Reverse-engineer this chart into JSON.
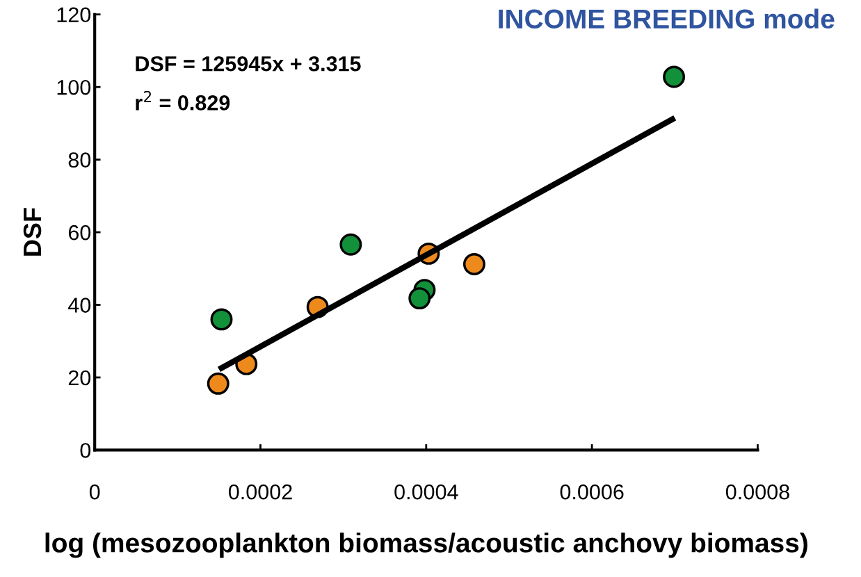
{
  "chart_data": {
    "type": "scatter",
    "title": "INCOME BREEDING mode",
    "xlabel": "log (mesozooplankton biomass/acoustic anchovy biomass)",
    "ylabel": "DSF",
    "annotations": [
      "DSF = 125945x + 3.315",
      "r$^{2}$ = 0.829"
    ],
    "xlim": [
      0,
      0.0008
    ],
    "ylim": [
      0,
      120
    ],
    "xticks": [
      0,
      0.0002,
      0.0004,
      0.0006,
      0.0008
    ],
    "yticks": [
      0,
      20,
      40,
      60,
      80,
      100,
      120
    ],
    "grid": false,
    "legend": false,
    "marker": "circle",
    "series": [
      {
        "color": "#12913a",
        "x": [
          0.000153,
          0.000309,
          0.000398,
          0.000392,
          0.000699
        ],
        "values": [
          36,
          56.6,
          44.1,
          41.8,
          102.8
        ]
      },
      {
        "color": "#ee8a1c",
        "x": [
          0.000149,
          0.000183,
          0.000269,
          0.000403,
          0.000458
        ],
        "values": [
          18.3,
          23.7,
          39.4,
          54.1,
          51.2
        ]
      },
      {
        "type": "line",
        "color": "#000000",
        "line_style": "solid",
        "marker": "none",
        "x": [
          0.00015,
          0.0007
        ],
        "values": [
          22.2,
          91.5
        ]
      }
    ]
  }
}
